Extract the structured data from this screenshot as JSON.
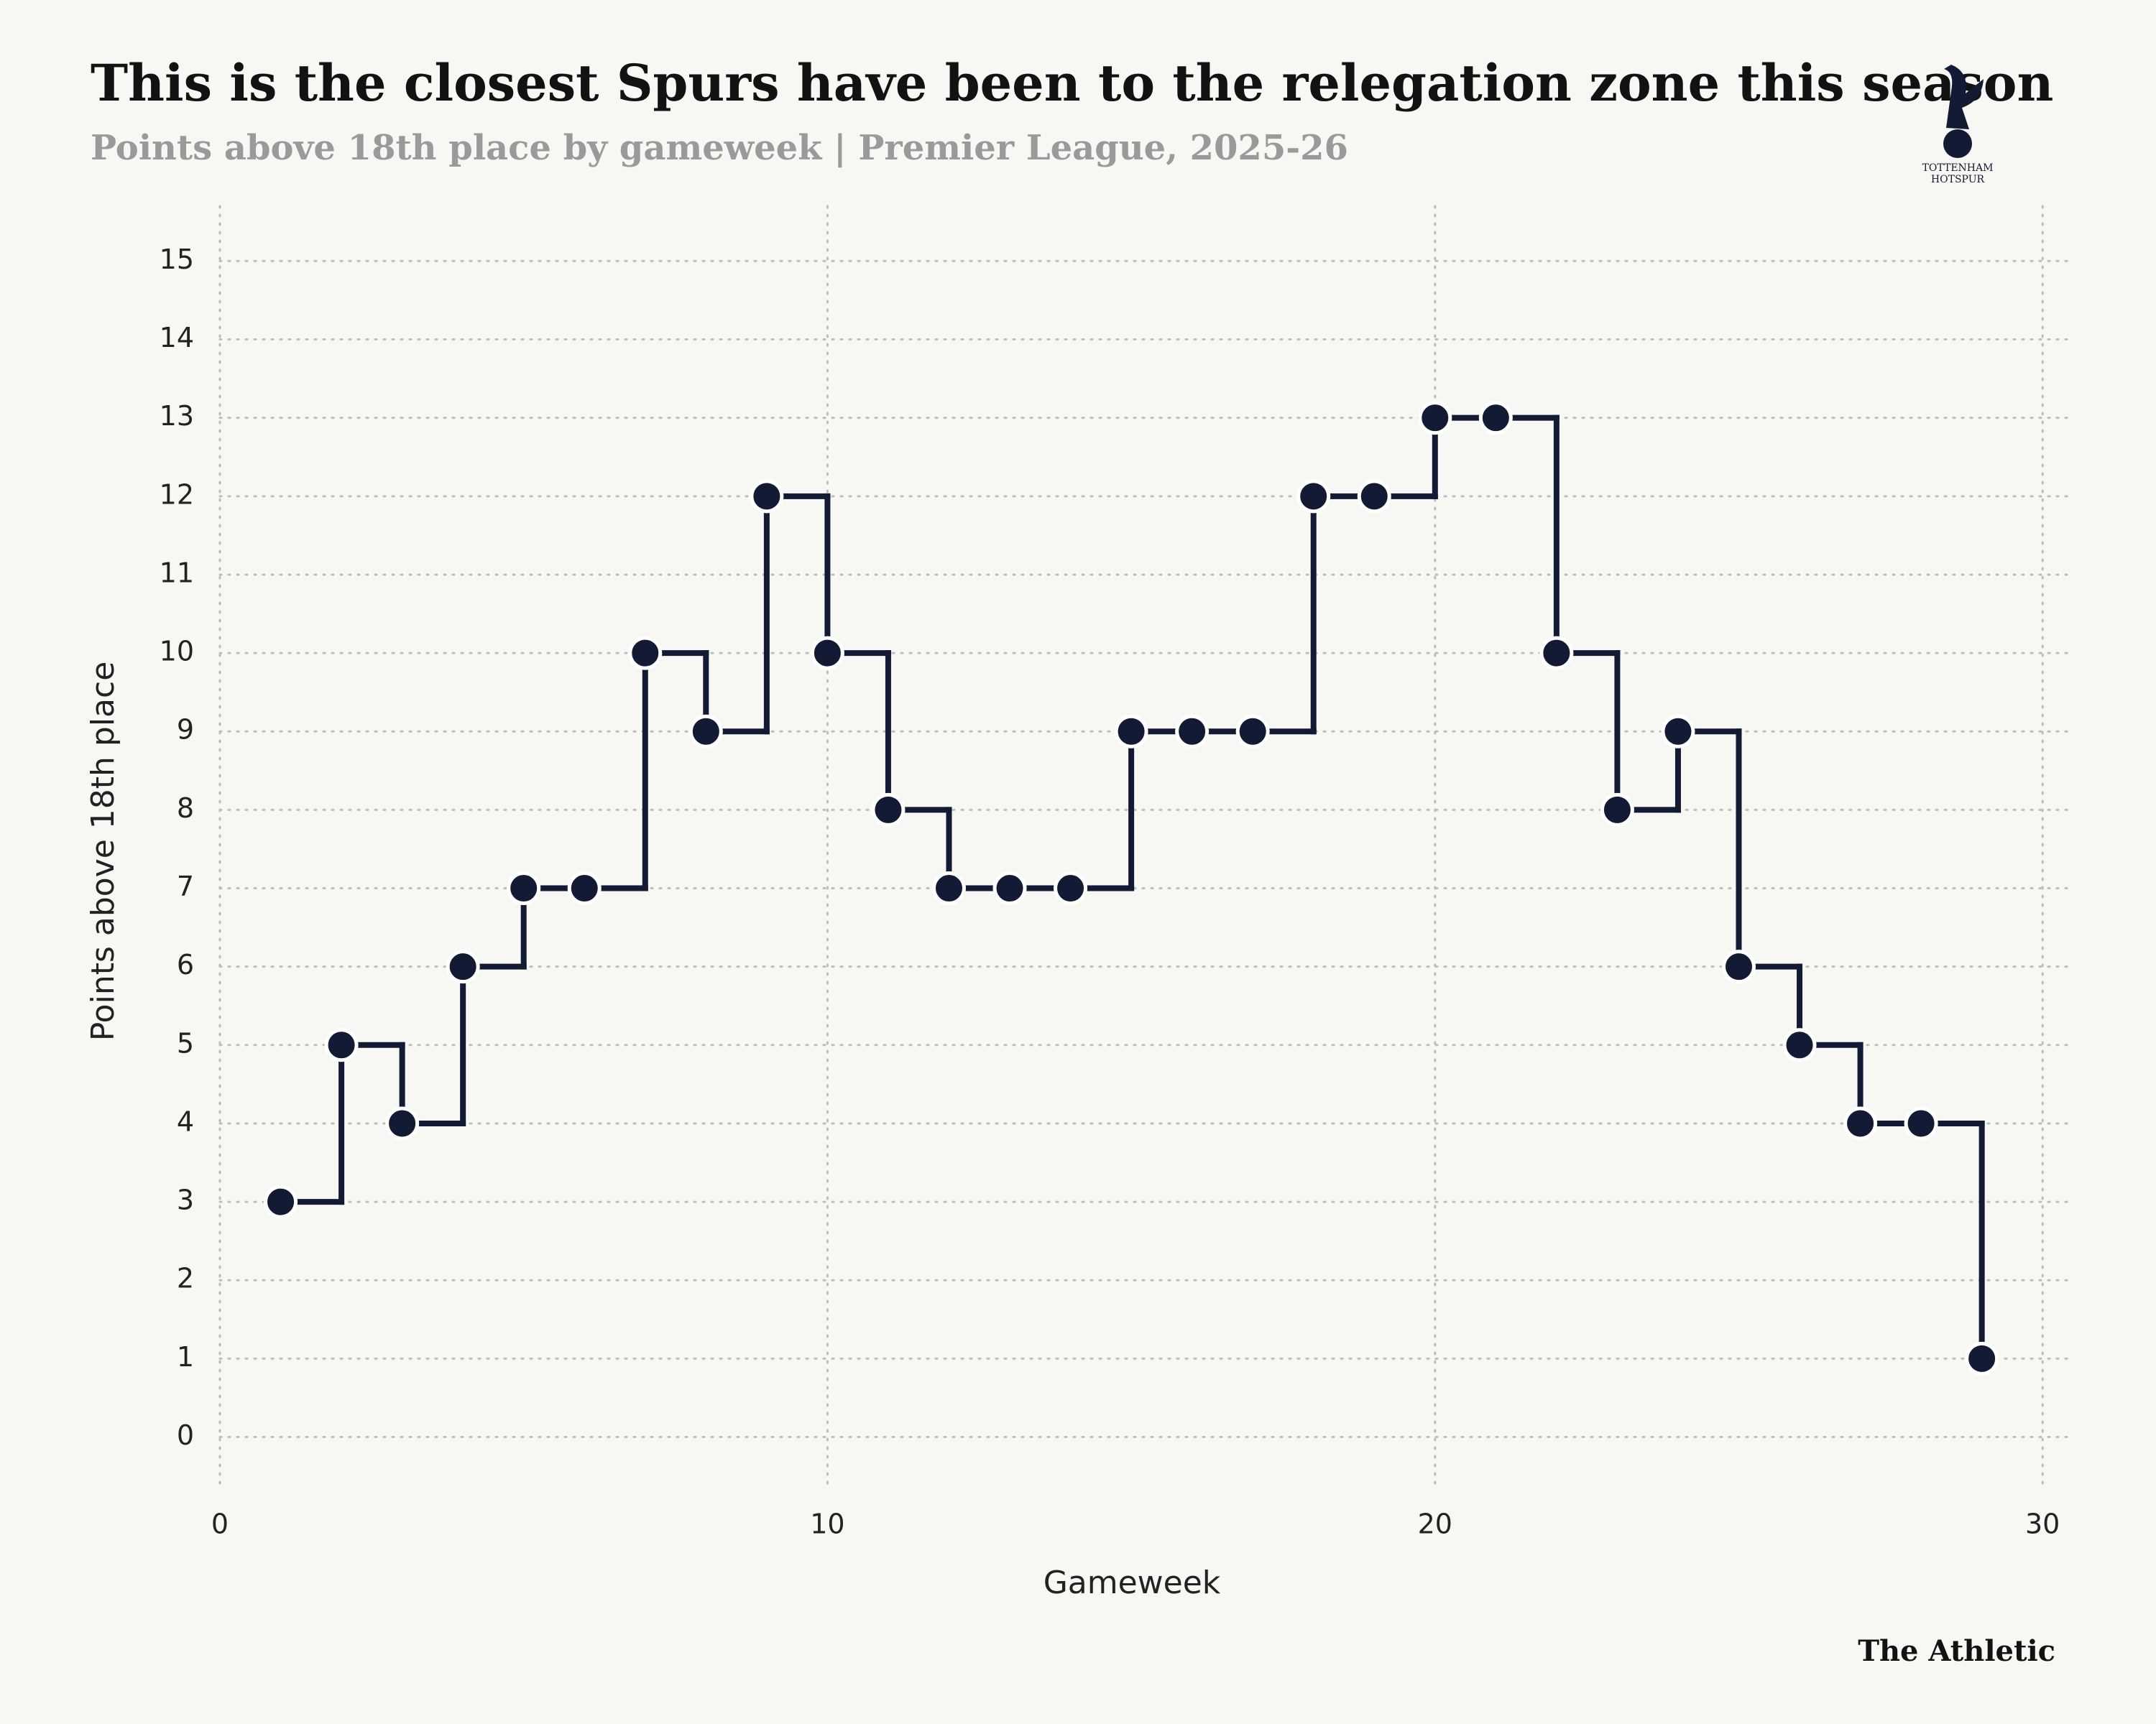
{
  "chart_data": {
    "type": "line",
    "step": "post",
    "title": "This is the closest Spurs have been to the relegation zone this season",
    "subtitle": "Points above 18th place by gameweek | Premier League, 2025-26",
    "x_label": "Gameweek",
    "y_label": "Points above 18th place",
    "source": "The Athletic",
    "logo_text": [
      "TOTTENHAM",
      "HOTSPUR"
    ],
    "x": [
      1,
      2,
      3,
      4,
      5,
      6,
      7,
      8,
      9,
      10,
      11,
      12,
      13,
      14,
      15,
      16,
      17,
      18,
      19,
      20,
      21,
      22,
      23,
      24,
      25,
      26,
      27,
      28,
      29
    ],
    "series": [
      {
        "name": "Tottenham Hotspur",
        "color": "#131a33",
        "values": [
          3,
          5,
          4,
          6,
          7,
          7,
          10,
          9,
          12,
          10,
          8,
          7,
          7,
          7,
          9,
          9,
          9,
          12,
          12,
          13,
          13,
          10,
          8,
          9,
          6,
          5,
          4,
          4,
          1
        ]
      }
    ],
    "xlim": [
      0,
      30.4
    ],
    "xticks": [
      0,
      10,
      20,
      30
    ],
    "ylim": [
      -0.6,
      15.7
    ],
    "yticks": [
      0,
      1,
      2,
      3,
      4,
      5,
      6,
      7,
      8,
      9,
      10,
      11,
      12,
      13,
      14,
      15
    ],
    "grid": true
  }
}
